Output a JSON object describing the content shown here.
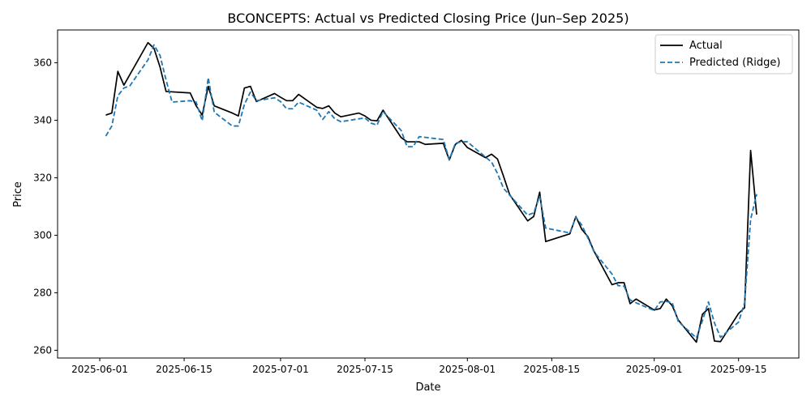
{
  "chart_data": {
    "type": "line",
    "title": "BCONCEPTS: Actual vs Predicted Closing Price (Jun–Sep 2025)",
    "xlabel": "Date",
    "ylabel": "Price",
    "x_ticks": [
      "2025-06-01",
      "2025-06-15",
      "2025-07-01",
      "2025-07-15",
      "2025-08-01",
      "2025-08-15",
      "2025-09-01",
      "2025-09-15"
    ],
    "y_ticks": [
      260,
      280,
      300,
      320,
      340,
      360
    ],
    "xlim": [
      "2025-05-25",
      "2025-09-25"
    ],
    "ylim": [
      257.3,
      371.4
    ],
    "legend_position": "top-right",
    "grid": false,
    "series": [
      {
        "name": "Actual",
        "color": "#000000",
        "style": "solid",
        "points": [
          [
            "2025-06-02",
            341.8
          ],
          [
            "2025-06-03",
            342.5
          ],
          [
            "2025-06-04",
            357.0
          ],
          [
            "2025-06-05",
            352.2
          ],
          [
            "2025-06-09",
            367.0
          ],
          [
            "2025-06-10",
            365.0
          ],
          [
            "2025-06-11",
            358.5
          ],
          [
            "2025-06-12",
            350.0
          ],
          [
            "2025-06-16",
            349.5
          ],
          [
            "2025-06-17",
            345.0
          ],
          [
            "2025-06-18",
            341.8
          ],
          [
            "2025-06-19",
            351.8
          ],
          [
            "2025-06-20",
            345.0
          ],
          [
            "2025-06-23",
            342.5
          ],
          [
            "2025-06-24",
            341.5
          ],
          [
            "2025-06-25",
            351.2
          ],
          [
            "2025-06-26",
            351.8
          ],
          [
            "2025-06-27",
            346.5
          ],
          [
            "2025-06-30",
            349.3
          ],
          [
            "2025-07-01",
            348.0
          ],
          [
            "2025-07-02",
            346.8
          ],
          [
            "2025-07-03",
            346.8
          ],
          [
            "2025-07-04",
            349.0
          ],
          [
            "2025-07-07",
            344.5
          ],
          [
            "2025-07-08",
            344.1
          ],
          [
            "2025-07-09",
            345.0
          ],
          [
            "2025-07-10",
            342.5
          ],
          [
            "2025-07-11",
            341.2
          ],
          [
            "2025-07-14",
            342.5
          ],
          [
            "2025-07-15",
            341.5
          ],
          [
            "2025-07-16",
            340.0
          ],
          [
            "2025-07-17",
            339.8
          ],
          [
            "2025-07-18",
            343.5
          ],
          [
            "2025-07-21",
            334.0
          ],
          [
            "2025-07-22",
            332.5
          ],
          [
            "2025-07-23",
            332.5
          ],
          [
            "2025-07-24",
            332.5
          ],
          [
            "2025-07-25",
            331.6
          ],
          [
            "2025-07-28",
            332.0
          ],
          [
            "2025-07-29",
            326.2
          ],
          [
            "2025-07-30",
            331.6
          ],
          [
            "2025-07-31",
            333.0
          ],
          [
            "2025-08-01",
            330.5
          ],
          [
            "2025-08-04",
            327.0
          ],
          [
            "2025-08-05",
            328.2
          ],
          [
            "2025-08-06",
            326.5
          ],
          [
            "2025-08-07",
            320.5
          ],
          [
            "2025-08-08",
            314.2
          ],
          [
            "2025-08-11",
            305.0
          ],
          [
            "2025-08-12",
            306.5
          ],
          [
            "2025-08-13",
            315.0
          ],
          [
            "2025-08-14",
            297.8
          ],
          [
            "2025-08-18",
            300.5
          ],
          [
            "2025-08-19",
            306.5
          ],
          [
            "2025-08-20",
            302.0
          ],
          [
            "2025-08-21",
            299.5
          ],
          [
            "2025-08-22",
            294.5
          ],
          [
            "2025-08-25",
            282.8
          ],
          [
            "2025-08-26",
            283.5
          ],
          [
            "2025-08-27",
            283.5
          ],
          [
            "2025-08-28",
            276.2
          ],
          [
            "2025-08-29",
            277.8
          ],
          [
            "2025-09-01",
            274.0
          ],
          [
            "2025-09-02",
            274.5
          ],
          [
            "2025-09-03",
            277.8
          ],
          [
            "2025-09-04",
            275.5
          ],
          [
            "2025-09-05",
            270.5
          ],
          [
            "2025-09-08",
            262.8
          ],
          [
            "2025-09-09",
            272.5
          ],
          [
            "2025-09-10",
            274.5
          ],
          [
            "2025-09-11",
            263.2
          ],
          [
            "2025-09-12",
            263.0
          ],
          [
            "2025-09-15",
            272.8
          ],
          [
            "2025-09-16",
            274.8
          ],
          [
            "2025-09-17",
            329.5
          ],
          [
            "2025-09-18",
            307.2
          ]
        ]
      },
      {
        "name": "Predicted (Ridge)",
        "color": "#1f77b4",
        "style": "dashed",
        "points": [
          [
            "2025-06-02",
            334.5
          ],
          [
            "2025-06-03",
            338.0
          ],
          [
            "2025-06-04",
            348.5
          ],
          [
            "2025-06-05",
            351.2
          ],
          [
            "2025-06-06",
            352.0
          ],
          [
            "2025-06-09",
            361.0
          ],
          [
            "2025-06-10",
            366.2
          ],
          [
            "2025-06-11",
            362.5
          ],
          [
            "2025-06-12",
            354.0
          ],
          [
            "2025-06-13",
            346.3
          ],
          [
            "2025-06-16",
            346.8
          ],
          [
            "2025-06-17",
            346.3
          ],
          [
            "2025-06-18",
            339.8
          ],
          [
            "2025-06-19",
            354.8
          ],
          [
            "2025-06-20",
            342.8
          ],
          [
            "2025-06-23",
            338.0
          ],
          [
            "2025-06-24",
            338.0
          ],
          [
            "2025-06-25",
            345.5
          ],
          [
            "2025-06-26",
            349.8
          ],
          [
            "2025-06-27",
            346.8
          ],
          [
            "2025-06-30",
            347.8
          ],
          [
            "2025-07-01",
            346.5
          ],
          [
            "2025-07-02",
            344.0
          ],
          [
            "2025-07-03",
            344.0
          ],
          [
            "2025-07-04",
            346.3
          ],
          [
            "2025-07-07",
            343.5
          ],
          [
            "2025-07-08",
            340.3
          ],
          [
            "2025-07-09",
            343.0
          ],
          [
            "2025-07-10",
            340.5
          ],
          [
            "2025-07-11",
            339.5
          ],
          [
            "2025-07-14",
            340.5
          ],
          [
            "2025-07-15",
            340.8
          ],
          [
            "2025-07-16",
            339.0
          ],
          [
            "2025-07-17",
            338.3
          ],
          [
            "2025-07-18",
            343.0
          ],
          [
            "2025-07-21",
            336.5
          ],
          [
            "2025-07-22",
            330.8
          ],
          [
            "2025-07-23",
            330.8
          ],
          [
            "2025-07-24",
            334.3
          ],
          [
            "2025-07-28",
            333.3
          ],
          [
            "2025-07-29",
            326.3
          ],
          [
            "2025-07-30",
            332.0
          ],
          [
            "2025-07-31",
            332.5
          ],
          [
            "2025-08-01",
            332.5
          ],
          [
            "2025-08-04",
            327.2
          ],
          [
            "2025-08-05",
            325.5
          ],
          [
            "2025-08-06",
            321.5
          ],
          [
            "2025-08-07",
            316.3
          ],
          [
            "2025-08-11",
            307.0
          ],
          [
            "2025-08-12",
            307.8
          ],
          [
            "2025-08-13",
            313.5
          ],
          [
            "2025-08-14",
            302.5
          ],
          [
            "2025-08-18",
            300.8
          ],
          [
            "2025-08-19",
            306.3
          ],
          [
            "2025-08-20",
            303.5
          ],
          [
            "2025-08-21",
            299.0
          ],
          [
            "2025-08-22",
            294.3
          ],
          [
            "2025-08-25",
            286.5
          ],
          [
            "2025-08-26",
            282.5
          ],
          [
            "2025-08-27",
            282.3
          ],
          [
            "2025-08-28",
            277.5
          ],
          [
            "2025-08-29",
            276.5
          ],
          [
            "2025-09-01",
            273.8
          ],
          [
            "2025-09-02",
            276.8
          ],
          [
            "2025-09-03",
            277.0
          ],
          [
            "2025-09-04",
            276.5
          ],
          [
            "2025-09-05",
            270.0
          ],
          [
            "2025-09-08",
            264.3
          ],
          [
            "2025-09-09",
            270.3
          ],
          [
            "2025-09-10",
            276.8
          ],
          [
            "2025-09-11",
            269.5
          ],
          [
            "2025-09-12",
            264.5
          ],
          [
            "2025-09-15",
            269.8
          ],
          [
            "2025-09-16",
            276.5
          ],
          [
            "2025-09-17",
            305.5
          ],
          [
            "2025-09-18",
            314.3
          ]
        ]
      }
    ]
  }
}
